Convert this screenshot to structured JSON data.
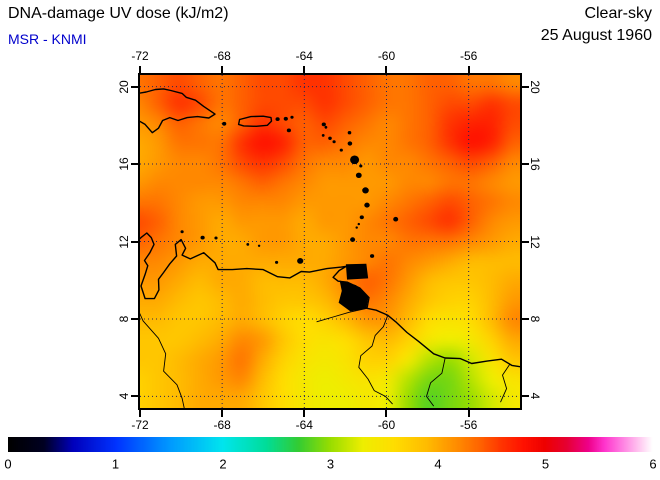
{
  "header": {
    "title": "DNA-damage UV dose (kJ/m2)",
    "source": "MSR - KNMI",
    "condition": "Clear-sky",
    "date": "25 August 1960"
  },
  "chart_data": {
    "type": "heatmap",
    "title": "DNA-damage UV dose (kJ/m2)",
    "subtitle_left": "MSR - KNMI",
    "subtitle_right": [
      "Clear-sky",
      "25 August 1960"
    ],
    "units": "kJ/m2",
    "xlim": [
      -72,
      -53.5
    ],
    "ylim": [
      3.4,
      20.6
    ],
    "xticks": [
      -72,
      -68,
      -64,
      -60,
      -56
    ],
    "yticks": [
      20,
      16,
      12,
      8,
      4
    ],
    "grid_on": true,
    "grid_color": "#202060",
    "colorbar": {
      "min": 0,
      "max": 6,
      "tick_labels": [
        "0",
        "1",
        "2",
        "3",
        "4",
        "5",
        "6"
      ],
      "stops": [
        [
          0.0,
          "#000000"
        ],
        [
          0.055,
          "#000022"
        ],
        [
          0.1,
          "#0000bb"
        ],
        [
          0.167,
          "#0033ff"
        ],
        [
          0.25,
          "#0099ff"
        ],
        [
          0.333,
          "#00e5ee"
        ],
        [
          0.4,
          "#00dd99"
        ],
        [
          0.45,
          "#33cc33"
        ],
        [
          0.5,
          "#99dd00"
        ],
        [
          0.55,
          "#eeee00"
        ],
        [
          0.6,
          "#ffdd00"
        ],
        [
          0.65,
          "#ffbb00"
        ],
        [
          0.7,
          "#ff8800"
        ],
        [
          0.73,
          "#ff6600"
        ],
        [
          0.767,
          "#ff3300"
        ],
        [
          0.8,
          "#ff1100"
        ],
        [
          0.833,
          "#ee0000"
        ],
        [
          0.867,
          "#e60033"
        ],
        [
          0.9,
          "#ee0088"
        ],
        [
          0.925,
          "#ff33cc"
        ],
        [
          0.95,
          "#ff77e0"
        ],
        [
          0.975,
          "#ffbbee"
        ],
        [
          1.0,
          "#ffffff"
        ]
      ]
    },
    "grid": {
      "lon0": -72,
      "lat0": 20,
      "dlon": 1,
      "dlat": 1,
      "values": [
        [
          4.3,
          4.4,
          4.5,
          4.4,
          4.3,
          4.4,
          4.5,
          4.5,
          4.6,
          4.6,
          4.5,
          4.4,
          4.3,
          4.3,
          4.4,
          4.4,
          4.3,
          4.3,
          4.2
        ],
        [
          4.2,
          4.4,
          4.6,
          4.5,
          4.3,
          4.4,
          4.5,
          4.5,
          4.5,
          4.6,
          4.5,
          4.4,
          4.3,
          4.3,
          4.4,
          4.5,
          4.5,
          4.6,
          4.5
        ],
        [
          4.1,
          4.2,
          4.4,
          4.3,
          4.2,
          4.4,
          4.6,
          4.5,
          4.4,
          4.5,
          4.4,
          4.3,
          4.2,
          4.3,
          4.4,
          4.6,
          4.7,
          4.7,
          4.5
        ],
        [
          4.0,
          4.1,
          4.3,
          4.3,
          4.3,
          4.6,
          4.8,
          4.7,
          4.4,
          4.4,
          4.3,
          4.2,
          4.2,
          4.3,
          4.4,
          4.6,
          4.8,
          4.7,
          4.4
        ],
        [
          4.0,
          4.1,
          4.2,
          4.2,
          4.3,
          4.5,
          4.6,
          4.5,
          4.3,
          4.2,
          4.2,
          4.1,
          4.2,
          4.2,
          4.3,
          4.4,
          4.5,
          4.4,
          4.2
        ],
        [
          4.1,
          4.2,
          4.2,
          4.2,
          4.2,
          4.3,
          4.4,
          4.3,
          4.2,
          4.1,
          4.1,
          4.1,
          4.1,
          4.2,
          4.2,
          4.3,
          4.3,
          4.2,
          4.1
        ],
        [
          4.3,
          4.3,
          4.2,
          4.1,
          4.1,
          4.2,
          4.2,
          4.2,
          4.1,
          4.1,
          4.1,
          4.1,
          4.2,
          4.3,
          4.4,
          4.5,
          4.4,
          4.3,
          4.2
        ],
        [
          4.5,
          4.4,
          4.2,
          4.1,
          4.0,
          4.1,
          4.1,
          4.1,
          4.0,
          4.1,
          4.1,
          4.2,
          4.3,
          4.4,
          4.5,
          4.6,
          4.4,
          4.2,
          4.1
        ],
        [
          4.4,
          4.3,
          4.2,
          4.1,
          4.0,
          4.0,
          4.1,
          4.1,
          4.0,
          4.0,
          4.1,
          4.2,
          4.2,
          4.3,
          4.3,
          4.3,
          4.2,
          4.1,
          4.0
        ],
        [
          4.2,
          4.2,
          4.1,
          4.0,
          4.0,
          4.0,
          4.0,
          4.0,
          4.0,
          4.0,
          4.1,
          4.2,
          4.3,
          4.2,
          4.1,
          4.0,
          3.9,
          3.9,
          3.9
        ],
        [
          4.1,
          4.1,
          4.0,
          3.9,
          4.0,
          4.0,
          3.9,
          3.9,
          3.9,
          4.0,
          4.2,
          4.4,
          4.3,
          4.1,
          3.9,
          3.8,
          3.8,
          3.9,
          4.0
        ],
        [
          4.0,
          4.0,
          3.9,
          3.8,
          3.9,
          4.0,
          3.9,
          3.8,
          3.8,
          3.9,
          4.1,
          4.3,
          4.2,
          4.0,
          3.8,
          3.7,
          3.7,
          3.9,
          4.1
        ],
        [
          3.9,
          3.9,
          3.8,
          3.8,
          3.9,
          4.0,
          3.9,
          3.7,
          3.6,
          3.7,
          3.9,
          4.1,
          4.1,
          3.9,
          3.6,
          3.5,
          3.6,
          3.9,
          4.2
        ],
        [
          3.8,
          3.8,
          3.8,
          3.9,
          4.0,
          4.2,
          4.1,
          3.8,
          3.6,
          3.5,
          3.6,
          3.8,
          3.9,
          3.7,
          3.4,
          3.3,
          3.4,
          3.7,
          4.0
        ],
        [
          3.8,
          3.8,
          3.9,
          4.0,
          4.1,
          4.3,
          4.0,
          3.7,
          3.5,
          3.4,
          3.5,
          3.7,
          3.7,
          3.4,
          3.1,
          3.0,
          3.2,
          3.5,
          3.8
        ],
        [
          3.7,
          3.8,
          3.9,
          4.0,
          4.1,
          4.2,
          3.9,
          3.6,
          3.4,
          3.3,
          3.4,
          3.5,
          3.4,
          3.1,
          2.9,
          2.9,
          3.1,
          3.3,
          3.5
        ],
        [
          3.7,
          3.8,
          3.9,
          4.0,
          4.0,
          4.0,
          3.8,
          3.6,
          3.4,
          3.3,
          3.3,
          3.4,
          3.3,
          3.0,
          2.8,
          2.9,
          3.0,
          3.2,
          3.4
        ]
      ]
    },
    "coastlines": [
      [
        [
          -72.6,
          18.25
        ],
        [
          -72.0,
          18.2
        ],
        [
          -71.75,
          18.05
        ],
        [
          -71.4,
          17.62
        ],
        [
          -71.1,
          17.85
        ],
        [
          -70.9,
          18.25
        ],
        [
          -70.55,
          18.4
        ],
        [
          -70.15,
          18.25
        ],
        [
          -69.7,
          18.4
        ],
        [
          -69.2,
          18.45
        ],
        [
          -68.65,
          18.38
        ],
        [
          -68.35,
          18.58
        ],
        [
          -68.9,
          18.98
        ],
        [
          -69.3,
          19.3
        ],
        [
          -69.75,
          19.45
        ],
        [
          -69.95,
          19.65
        ],
        [
          -70.5,
          19.8
        ],
        [
          -70.85,
          19.88
        ],
        [
          -71.25,
          19.85
        ],
        [
          -71.7,
          19.72
        ],
        [
          -72.1,
          19.65
        ],
        [
          -72.6,
          19.9
        ]
      ],
      [
        [
          -67.15,
          18.3
        ],
        [
          -66.6,
          18.45
        ],
        [
          -66.0,
          18.47
        ],
        [
          -65.62,
          18.4
        ],
        [
          -65.6,
          18.22
        ],
        [
          -65.8,
          18.0
        ],
        [
          -66.35,
          17.95
        ],
        [
          -66.95,
          17.97
        ],
        [
          -67.2,
          18.05
        ],
        [
          -67.15,
          18.3
        ]
      ],
      [
        [
          -72.6,
          11.6
        ],
        [
          -72.25,
          11.9
        ],
        [
          -71.95,
          12.2
        ],
        [
          -71.67,
          12.44
        ],
        [
          -71.45,
          12.2
        ],
        [
          -71.32,
          11.85
        ],
        [
          -71.52,
          11.42
        ],
        [
          -71.78,
          11.02
        ],
        [
          -71.62,
          10.75
        ],
        [
          -71.75,
          10.3
        ],
        [
          -71.95,
          9.7
        ],
        [
          -71.75,
          9.05
        ],
        [
          -71.3,
          9.05
        ],
        [
          -71.08,
          9.5
        ],
        [
          -71.1,
          10.05
        ],
        [
          -70.85,
          10.4
        ],
        [
          -70.55,
          10.85
        ],
        [
          -70.22,
          11.25
        ],
        [
          -70.28,
          11.85
        ],
        [
          -70.0,
          12.1
        ],
        [
          -69.78,
          11.65
        ],
        [
          -69.95,
          11.3
        ],
        [
          -69.55,
          11.1
        ],
        [
          -68.9,
          11.42
        ],
        [
          -68.35,
          10.9
        ],
        [
          -68.2,
          10.55
        ],
        [
          -67.5,
          10.55
        ],
        [
          -66.8,
          10.6
        ],
        [
          -66.0,
          10.55
        ],
        [
          -65.3,
          10.18
        ],
        [
          -64.7,
          10.12
        ],
        [
          -64.15,
          10.45
        ],
        [
          -63.75,
          10.42
        ],
        [
          -62.9,
          10.6
        ],
        [
          -62.2,
          10.68
        ],
        [
          -61.95,
          10.72
        ],
        [
          -62.3,
          10.5
        ],
        [
          -62.6,
          10.15
        ],
        [
          -62.35,
          9.95
        ],
        [
          -61.9,
          9.9
        ],
        [
          -61.3,
          9.6
        ],
        [
          -60.85,
          9.1
        ],
        [
          -60.95,
          8.55
        ],
        [
          -60.5,
          8.45
        ],
        [
          -59.95,
          8.2
        ],
        [
          -59.55,
          7.85
        ],
        [
          -59.0,
          7.3
        ],
        [
          -58.45,
          6.85
        ],
        [
          -57.7,
          6.2
        ],
        [
          -57.15,
          5.98
        ],
        [
          -56.4,
          5.95
        ],
        [
          -55.85,
          5.7
        ],
        [
          -55.1,
          5.82
        ],
        [
          -54.4,
          5.92
        ],
        [
          -53.9,
          5.6
        ],
        [
          -53.3,
          5.5
        ]
      ]
    ],
    "borders": [
      [
        [
          -72.6,
          9.2
        ],
        [
          -72.15,
          8.6
        ],
        [
          -71.85,
          7.9
        ],
        [
          -71.1,
          7.0
        ],
        [
          -70.75,
          6.2
        ],
        [
          -70.85,
          5.3
        ],
        [
          -70.2,
          4.6
        ],
        [
          -69.95,
          3.9
        ],
        [
          -69.85,
          3.4
        ]
      ],
      [
        [
          -59.95,
          8.15
        ],
        [
          -60.15,
          7.6
        ],
        [
          -60.55,
          7.15
        ],
        [
          -60.7,
          6.6
        ],
        [
          -61.25,
          6.1
        ],
        [
          -61.35,
          5.5
        ],
        [
          -60.9,
          4.9
        ],
        [
          -60.6,
          4.3
        ],
        [
          -60.05,
          4.0
        ],
        [
          -59.7,
          3.6
        ]
      ],
      [
        [
          -57.15,
          5.95
        ],
        [
          -57.3,
          5.2
        ],
        [
          -57.85,
          4.7
        ],
        [
          -58.05,
          4.0
        ],
        [
          -57.7,
          3.5
        ]
      ],
      [
        [
          -54.0,
          5.65
        ],
        [
          -54.35,
          5.1
        ],
        [
          -54.15,
          4.4
        ],
        [
          -54.45,
          3.7
        ]
      ],
      [
        [
          -60.95,
          8.55
        ],
        [
          -61.8,
          8.35
        ],
        [
          -62.6,
          8.1
        ],
        [
          -63.4,
          7.85
        ]
      ]
    ],
    "islands": [
      [
        -67.9,
        18.08,
        0.1
      ],
      [
        -65.3,
        18.32,
        0.1
      ],
      [
        -64.9,
        18.34,
        0.1
      ],
      [
        -64.6,
        18.42,
        0.08
      ],
      [
        -64.75,
        17.74,
        0.1
      ],
      [
        -63.05,
        18.05,
        0.1
      ],
      [
        -62.95,
        17.9,
        0.07
      ],
      [
        -63.08,
        17.48,
        0.07
      ],
      [
        -62.75,
        17.33,
        0.09
      ],
      [
        -62.55,
        17.15,
        0.08
      ],
      [
        -61.8,
        17.62,
        0.09
      ],
      [
        -61.78,
        17.06,
        0.11
      ],
      [
        -62.2,
        16.72,
        0.08
      ],
      [
        -61.55,
        16.22,
        0.22
      ],
      [
        -61.25,
        15.9,
        0.08
      ],
      [
        -61.35,
        15.42,
        0.14
      ],
      [
        -61.02,
        14.64,
        0.16
      ],
      [
        -60.95,
        13.88,
        0.13
      ],
      [
        -61.2,
        13.25,
        0.1
      ],
      [
        -61.35,
        12.9,
        0.06
      ],
      [
        -61.45,
        12.72,
        0.06
      ],
      [
        -61.65,
        12.1,
        0.12
      ],
      [
        -59.55,
        13.15,
        0.12
      ],
      [
        -60.7,
        11.25,
        0.1
      ],
      [
        -64.2,
        11.0,
        0.15
      ],
      [
        -65.35,
        10.92,
        0.08
      ],
      [
        -66.75,
        11.85,
        0.07
      ],
      [
        -66.2,
        11.78,
        0.06
      ],
      [
        -68.3,
        12.18,
        0.08
      ],
      [
        -68.95,
        12.2,
        0.1
      ],
      [
        -69.95,
        12.5,
        0.08
      ]
    ],
    "filled_land": [
      [
        [
          -61.95,
          10.8
        ],
        [
          -61.0,
          10.82
        ],
        [
          -60.92,
          10.12
        ],
        [
          -61.9,
          10.06
        ]
      ],
      [
        [
          -62.25,
          9.95
        ],
        [
          -61.5,
          9.72
        ],
        [
          -60.9,
          9.15
        ],
        [
          -61.0,
          8.55
        ],
        [
          -61.75,
          8.42
        ],
        [
          -62.3,
          8.85
        ],
        [
          -62.15,
          9.45
        ]
      ]
    ]
  }
}
